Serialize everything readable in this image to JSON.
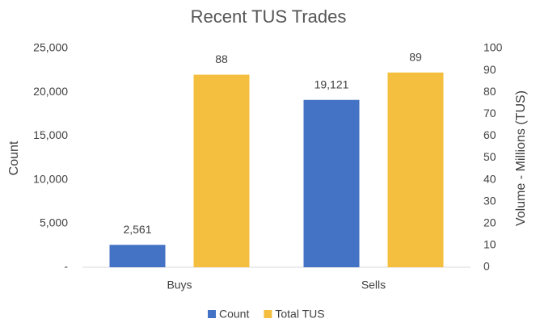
{
  "chart_data": {
    "type": "bar",
    "title": "Recent TUS Trades",
    "categories": [
      "Buys",
      "Sells"
    ],
    "series": [
      {
        "name": "Count",
        "color": "#4472c4",
        "values": [
          2561,
          19121
        ],
        "value_labels": [
          "2,561",
          "19,121"
        ]
      },
      {
        "name": "Total TUS",
        "color": "#f4bf3f",
        "values": [
          88,
          89
        ],
        "axis": "y2"
      }
    ],
    "y_label": "Count",
    "y2_label": "Volume - Millions (TUS)",
    "ylim": [
      0,
      25000
    ],
    "yticks": [
      {
        "value": 0,
        "label": "-"
      },
      {
        "value": 5000,
        "label": "5,000"
      },
      {
        "value": 10000,
        "label": "10,000"
      },
      {
        "value": 15000,
        "label": "15,000"
      },
      {
        "value": 20000,
        "label": "20,000"
      },
      {
        "value": 25000,
        "label": "25,000"
      }
    ],
    "y2lim": [
      0,
      100
    ],
    "y2ticks": [
      0,
      10,
      20,
      30,
      40,
      50,
      60,
      70,
      80,
      90,
      100
    ],
    "grid": false,
    "legend": "bottom"
  }
}
